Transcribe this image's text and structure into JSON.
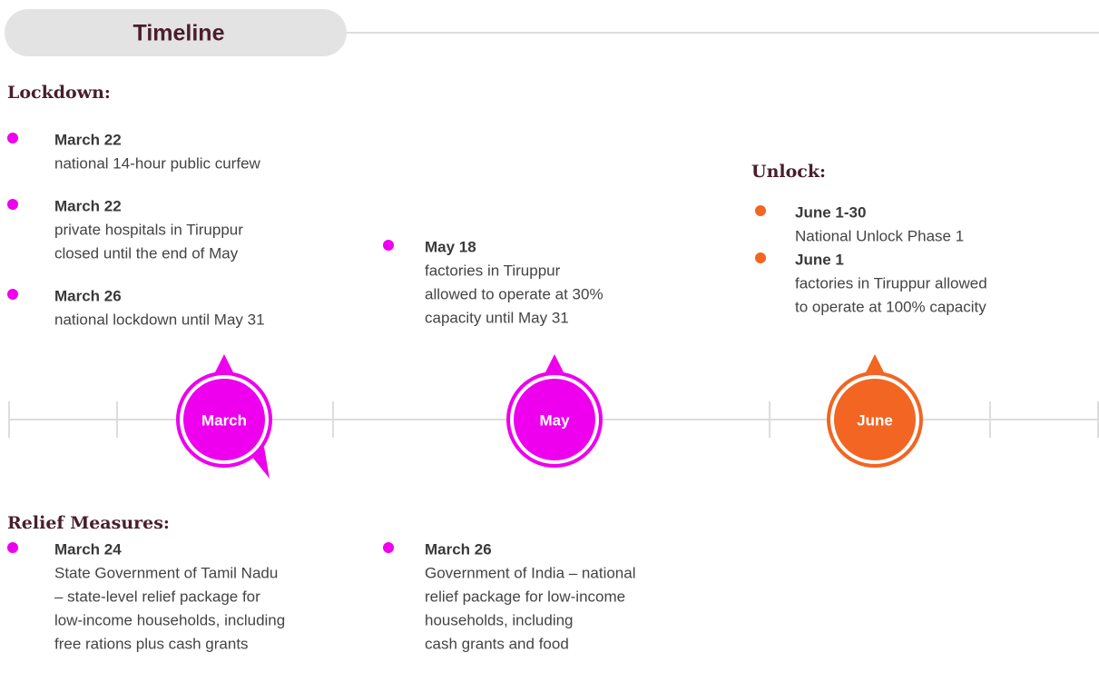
{
  "header": {
    "title": "Timeline"
  },
  "lockdown": {
    "title": "Lockdown:",
    "items": [
      {
        "date": "March 22",
        "lines": [
          "national 14-hour public curfew"
        ]
      },
      {
        "date": "March 22",
        "lines": [
          "private hospitals in Tiruppur",
          "closed until the end of May"
        ]
      },
      {
        "date": "March 26",
        "lines": [
          "national lockdown until May 31"
        ]
      },
      {
        "date": "May 18",
        "lines": [
          "factories in Tiruppur",
          "allowed to operate at 30%",
          "capacity until May 31"
        ]
      }
    ]
  },
  "unlock": {
    "title": "Unlock:",
    "items": [
      {
        "date": "June 1-30",
        "lines": [
          "National Unlock Phase 1"
        ]
      },
      {
        "date": "June 1",
        "lines": [
          "factories in Tiruppur allowed",
          "to operate at 100% capacity"
        ]
      }
    ]
  },
  "relief": {
    "title": "Relief Measures:",
    "items": [
      {
        "date": "March 24",
        "lines": [
          "State Government of Tamil Nadu",
          "– state-level relief package for",
          "low-income households, including",
          "free rations plus cash grants"
        ]
      },
      {
        "date": "March 26",
        "lines": [
          "Government of India – national",
          "relief package for low-income",
          "households, including",
          "cash grants and food"
        ]
      }
    ]
  },
  "timeline": {
    "markers": [
      "March",
      "May",
      "June"
    ]
  }
}
